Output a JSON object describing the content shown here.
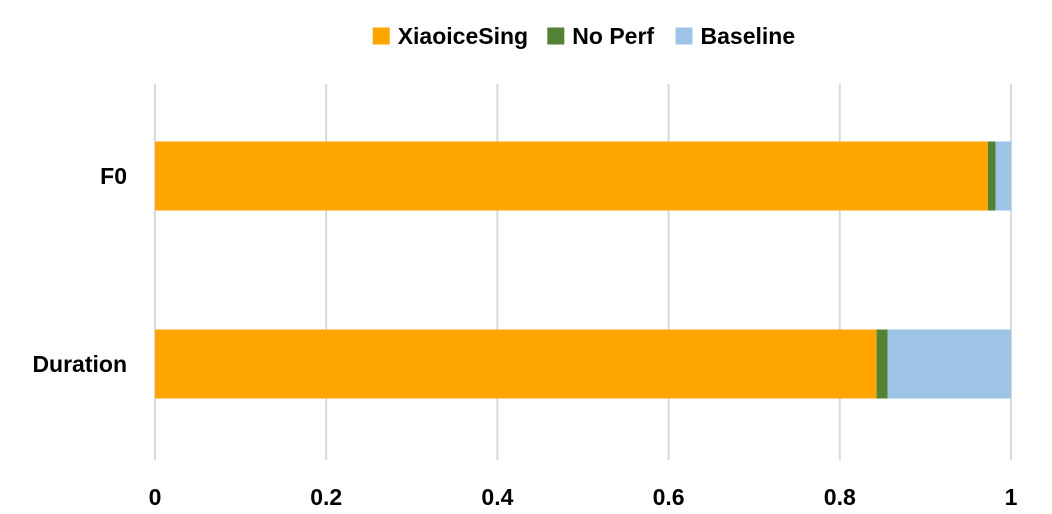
{
  "chart_data": {
    "type": "bar",
    "orientation": "horizontal",
    "stacked": true,
    "categories": [
      "F0",
      "Duration"
    ],
    "series": [
      {
        "name": "XiaoiceSing",
        "color": "#FFA500",
        "values": [
          0.973,
          0.843
        ]
      },
      {
        "name": "No Perf",
        "color": "#548235",
        "values": [
          0.009,
          0.013
        ]
      },
      {
        "name": "Baseline",
        "color": "#9DC3E6",
        "values": [
          0.018,
          0.144
        ]
      }
    ],
    "xlim": [
      0,
      1
    ],
    "x_ticks": [
      "0",
      "0.2",
      "0.4",
      "0.6",
      "0.8",
      "1"
    ],
    "x_tick_values": [
      0,
      0.2,
      0.4,
      0.6,
      0.8,
      1
    ],
    "grid": true,
    "legend_position": "top-center",
    "title": "",
    "xlabel": "",
    "ylabel": ""
  }
}
